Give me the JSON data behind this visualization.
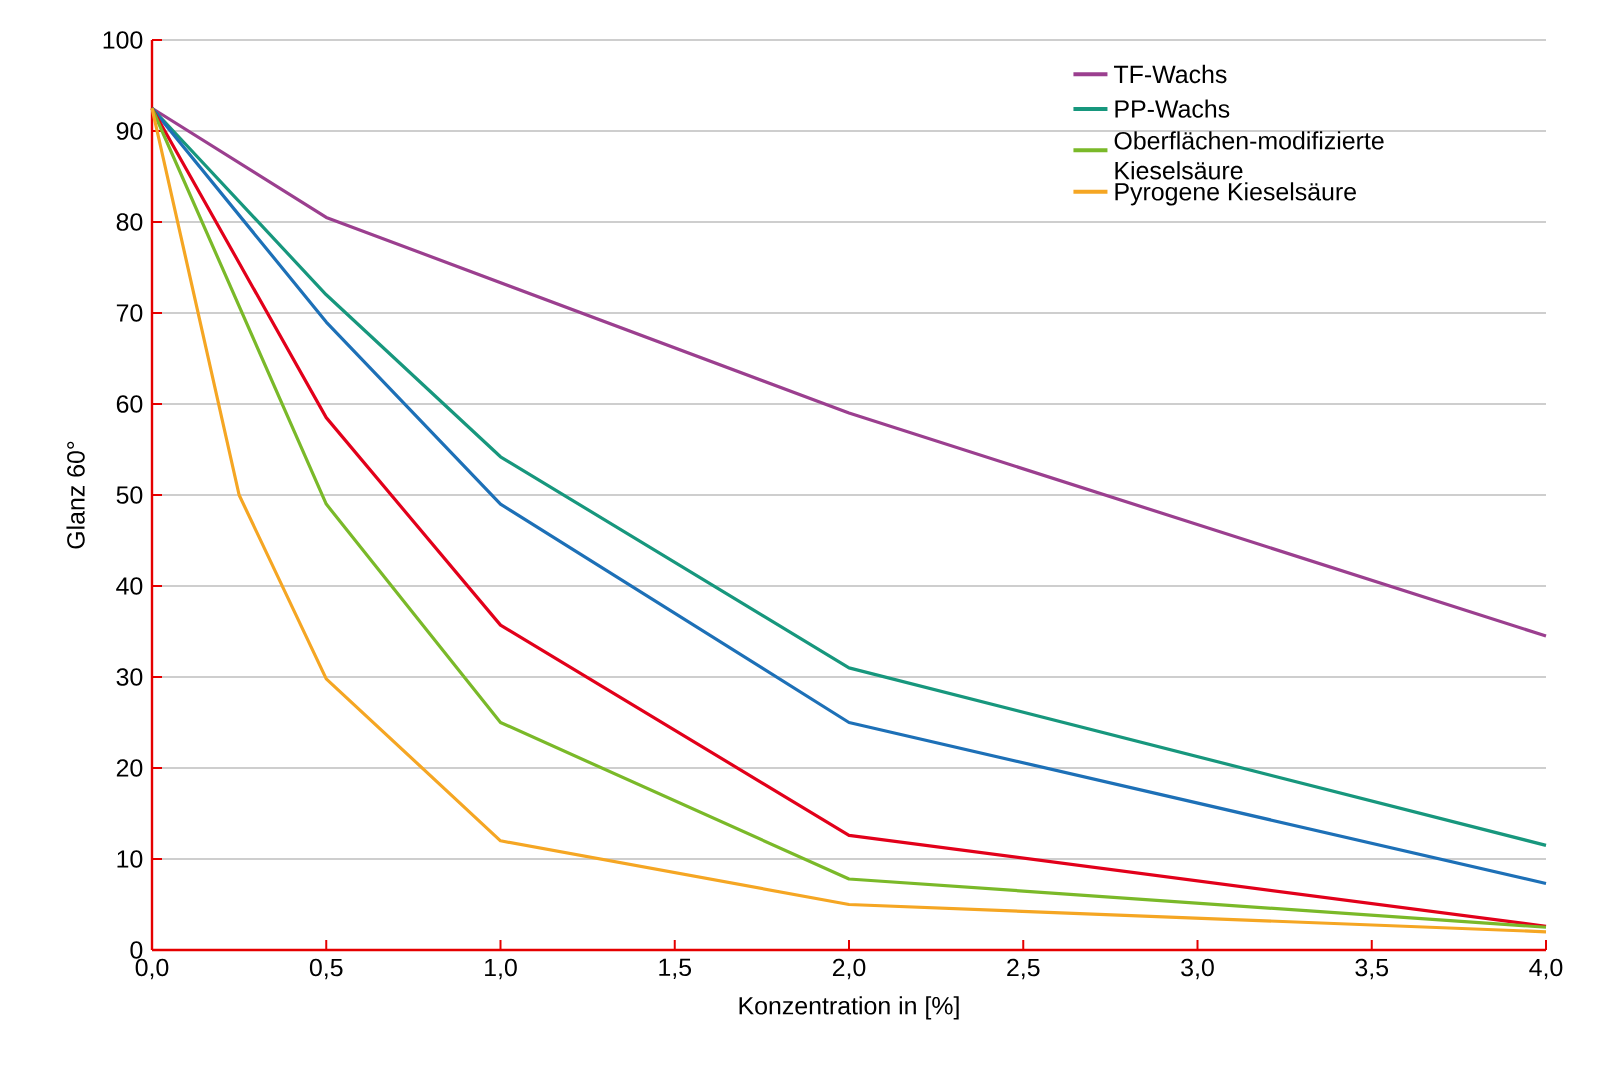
{
  "chart_data": {
    "type": "line",
    "xlabel": "Konzentration in [%]",
    "ylabel": "Glanz 60°",
    "xlim": [
      0,
      4
    ],
    "ylim": [
      0,
      100
    ],
    "xticks": [
      {
        "value": 0,
        "label": "0,0"
      },
      {
        "value": 0.5,
        "label": "0,5"
      },
      {
        "value": 1,
        "label": "1,0"
      },
      {
        "value": 1.5,
        "label": "1,5"
      },
      {
        "value": 2,
        "label": "2,0"
      },
      {
        "value": 2.5,
        "label": "2,5"
      },
      {
        "value": 3,
        "label": "3,0"
      },
      {
        "value": 3.5,
        "label": "3,5"
      },
      {
        "value": 4,
        "label": "4,0"
      }
    ],
    "yticks": [
      0,
      10,
      20,
      30,
      40,
      50,
      60,
      70,
      80,
      90,
      100
    ],
    "grid": "y",
    "legend": "top right",
    "marker": "none",
    "line_style": "solid",
    "series": [
      {
        "name": "TF-Wachs",
        "color": "#9b3f8f",
        "x": [
          0,
          0.5,
          2,
          4
        ],
        "values": [
          92.5,
          80.5,
          59,
          34.5
        ]
      },
      {
        "name": "PP-Wachs",
        "color": "#17977d",
        "x": [
          0,
          0.5,
          1,
          2,
          4
        ],
        "values": [
          92.5,
          72,
          54.2,
          31,
          11.5
        ]
      },
      {
        "color": "#1d70b7",
        "x": [
          0,
          0.5,
          1,
          2,
          4
        ],
        "values": [
          92.5,
          69,
          49,
          25,
          7.3
        ]
      },
      {
        "color": "#e2001a",
        "x": [
          0,
          0.5,
          1,
          2,
          4
        ],
        "values": [
          92.5,
          58.5,
          35.7,
          12.6,
          2.6
        ]
      },
      {
        "name": "Oberflächen-modifizierte Kieselsäure",
        "color": "#7ab929",
        "x": [
          0,
          0.5,
          1,
          2,
          4
        ],
        "values": [
          92.5,
          49,
          25,
          7.8,
          2.5
        ]
      },
      {
        "name": "Pyrogene Kieselsäure",
        "color": "#f5a623",
        "x": [
          0,
          0.25,
          0.5,
          1,
          2,
          4
        ],
        "values": [
          92.5,
          50,
          29.8,
          12,
          5,
          2
        ]
      }
    ]
  }
}
